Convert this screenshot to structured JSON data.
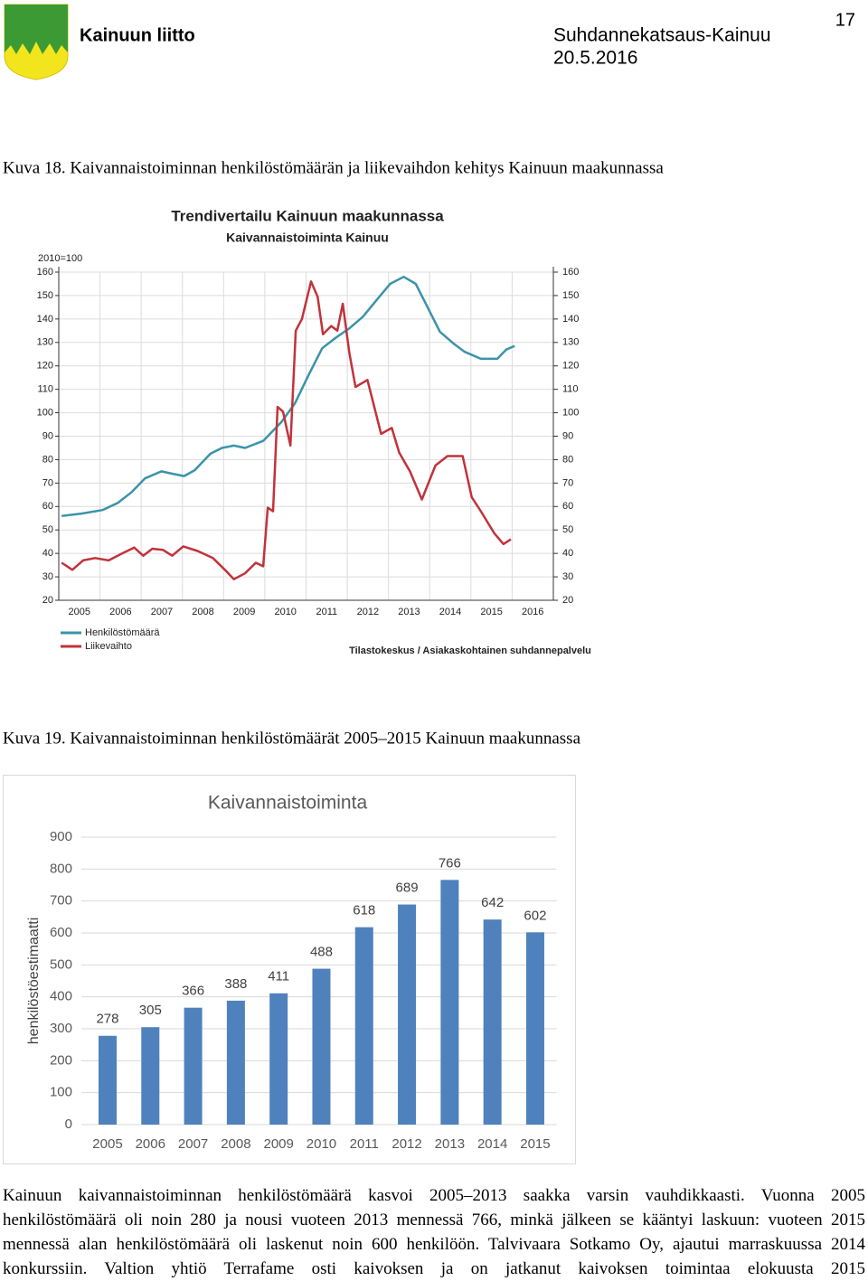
{
  "header": {
    "organization": "Kainuun liitto",
    "publication": "Suhdannekatsaus-Kainuu",
    "date": "20.5.2016",
    "page_number": "17"
  },
  "figures": [
    {
      "caption": "Kuva 18. Kaivannaistoiminnan henkilöstömäärän ja liikevaihdon kehitys Kainuun maakunnassa",
      "chart_data": {
        "type": "line",
        "title": "Trendivertailu Kainuun maakunnassa",
        "subtitle": "Kaivannaistoiminta Kainuu",
        "y_label": "2010=100",
        "source": "Tilastokeskus / Asiakaskohtainen suhdannepalvelu",
        "xlim": [
          2005,
          2017
        ],
        "xticks": [
          {
            "value": 2005.5,
            "label": "2005"
          },
          {
            "value": 2006.5,
            "label": "2006"
          },
          {
            "value": 2007.5,
            "label": "2007"
          },
          {
            "value": 2008.5,
            "label": "2008"
          },
          {
            "value": 2009.5,
            "label": "2009"
          },
          {
            "value": 2010.5,
            "label": "2010"
          },
          {
            "value": 2011.5,
            "label": "2011"
          },
          {
            "value": 2012.5,
            "label": "2012"
          },
          {
            "value": 2013.5,
            "label": "2013"
          },
          {
            "value": 2014.5,
            "label": "2014"
          },
          {
            "value": 2015.5,
            "label": "2015"
          },
          {
            "value": 2016.5,
            "label": "2016"
          }
        ],
        "ylim": [
          20,
          160
        ],
        "yticks": [
          20,
          30,
          40,
          50,
          60,
          70,
          80,
          90,
          100,
          110,
          120,
          130,
          140,
          150,
          160
        ],
        "y2lim": [
          20,
          160
        ],
        "y2ticks": [
          20,
          30,
          40,
          50,
          60,
          70,
          80,
          90,
          100,
          110,
          120,
          130,
          140,
          150,
          160
        ],
        "grid": true,
        "legend": "bottom-left",
        "series": [
          {
            "name": "Henkilöstömäärä",
            "color": "#3b93a9",
            "x": [
              2005.07,
              2005.55,
              2006.06,
              2006.43,
              2006.76,
              2007.09,
              2007.49,
              2007.75,
              2008.04,
              2008.3,
              2008.68,
              2008.96,
              2009.25,
              2009.52,
              2009.96,
              2010.4,
              2010.73,
              2011.06,
              2011.39,
              2011.72,
              2012.05,
              2012.38,
              2012.71,
              2013.04,
              2013.37,
              2013.66,
              2013.92,
              2014.25,
              2014.58,
              2014.85,
              2015.24,
              2015.64,
              2015.86,
              2016.06
            ],
            "values": [
              56,
              57,
              58.5,
              61.5,
              66,
              72,
              75,
              74,
              73,
              75.5,
              82.5,
              85,
              86,
              85,
              88,
              96,
              104,
              116,
              127.5,
              132,
              136,
              141,
              148,
              155,
              158,
              155,
              146,
              134.5,
              129.5,
              126,
              123,
              123,
              127,
              128.5
            ]
          },
          {
            "name": "Liikevaihto",
            "color": "#c1333b",
            "x": [
              2005.07,
              2005.33,
              2005.59,
              2005.88,
              2006.21,
              2006.54,
              2006.83,
              2007.05,
              2007.27,
              2007.53,
              2007.75,
              2008.02,
              2008.37,
              2008.74,
              2009.03,
              2009.25,
              2009.52,
              2009.78,
              2009.96,
              2010.07,
              2010.2,
              2010.31,
              2010.44,
              2010.62,
              2010.75,
              2010.9,
              2011.12,
              2011.28,
              2011.41,
              2011.61,
              2011.76,
              2011.89,
              2012.05,
              2012.2,
              2012.49,
              2012.82,
              2013.08,
              2013.26,
              2013.52,
              2013.81,
              2014.14,
              2014.43,
              2014.63,
              2014.8,
              2015.02,
              2015.24,
              2015.57,
              2015.79,
              2015.97
            ],
            "values": [
              36,
              33,
              37,
              38,
              37,
              40,
              42.5,
              39,
              42,
              41.5,
              39,
              43,
              41,
              38,
              33,
              29,
              31.5,
              36,
              34.5,
              59.5,
              58,
              102.5,
              100.5,
              86,
              135,
              140,
              156,
              149.5,
              133.5,
              137,
              135,
              146.5,
              125.5,
              111,
              114,
              91,
              93.5,
              83,
              75,
              63,
              77.5,
              81.5,
              81.5,
              81.5,
              64,
              58,
              48.5,
              44,
              46
            ]
          }
        ]
      }
    },
    {
      "caption": "Kuva 19. Kaivannaistoiminnan henkilöstömäärät 2005–2015 Kainuun maakunnassa",
      "chart_data": {
        "type": "bar",
        "title": "Kaivannaistoiminta",
        "y_label": "henkilöstöestimaatti",
        "categories": [
          "2005",
          "2006",
          "2007",
          "2008",
          "2009",
          "2010",
          "2011",
          "2012",
          "2013",
          "2014",
          "2015"
        ],
        "values": [
          278,
          305,
          366,
          388,
          411,
          488,
          618,
          689,
          766,
          642,
          602
        ],
        "color": "#4f81bd",
        "ylim": [
          0,
          900
        ],
        "yticks": [
          0,
          100,
          200,
          300,
          400,
          500,
          600,
          700,
          800,
          900
        ],
        "grid": true
      }
    }
  ],
  "body": {
    "paragraph": "Kainuun kaivannaistoiminnan henkilöstömäärä kasvoi 2005–2013 saakka varsin vauhdikkaasti. Vuonna 2005 henkilöstömäärä oli noin 280 ja nousi vuoteen 2013 mennessä 766, minkä jälkeen se kääntyi laskuun: vuoteen 2015 mennessä alan henkilöstömäärä oli laskenut noin 600 henkilöön. Talvivaara Sotkamo Oy, ajautui marraskuussa 2014 konkurssiin. Valtion yhtiö Terrafame osti kaivoksen ja on jatkanut kaivoksen toimintaa elokuusta 2015"
  }
}
